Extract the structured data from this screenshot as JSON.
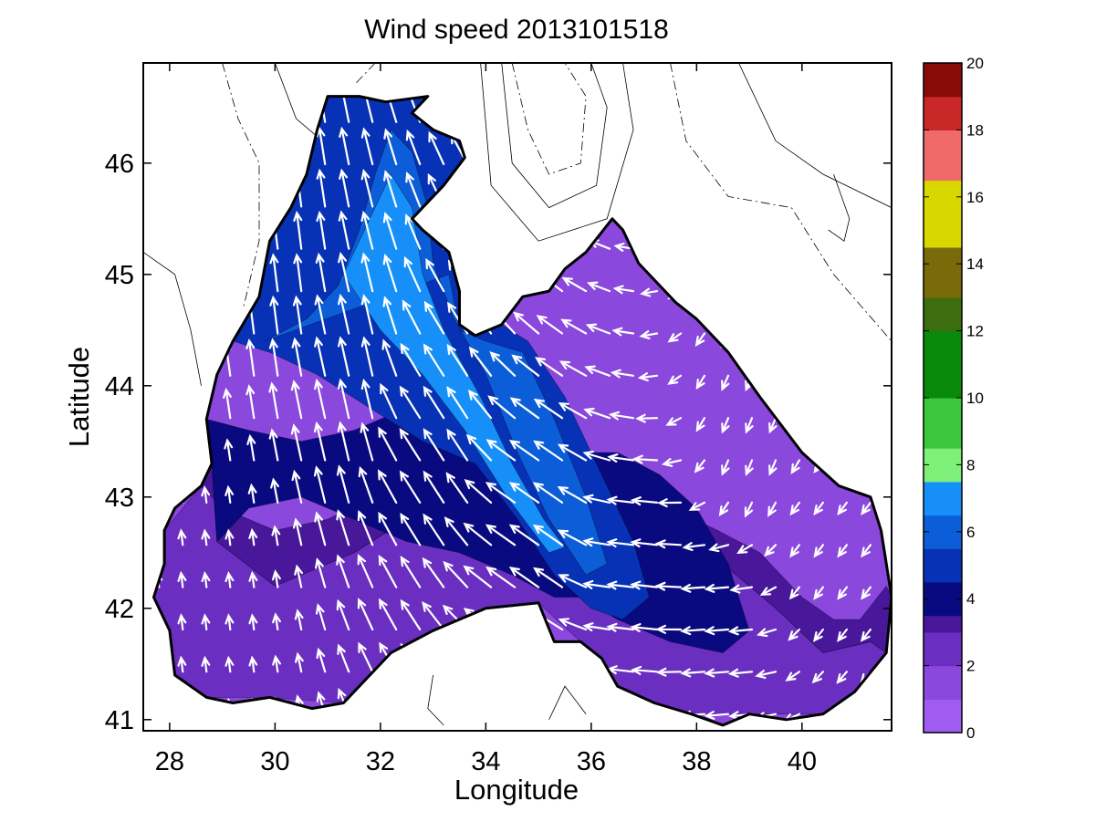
{
  "chart_data": {
    "type": "heatmap",
    "title": "Wind speed 2013101518",
    "xlabel": "Longitude",
    "ylabel": "Latitude",
    "xlim": [
      27.5,
      41.7
    ],
    "ylim": [
      40.9,
      46.9
    ],
    "x_ticks": [
      28,
      30,
      32,
      34,
      36,
      38,
      40
    ],
    "y_ticks": [
      41,
      42,
      43,
      44,
      45,
      46
    ],
    "grid": false,
    "colorbar": {
      "orientation": "vertical",
      "placement": "right",
      "range": [
        0,
        20
      ],
      "ticks": [
        0,
        2,
        4,
        6,
        8,
        10,
        12,
        14,
        16,
        18,
        20
      ],
      "levels": [
        {
          "from": 0,
          "to": 1,
          "color": "#a05cf0"
        },
        {
          "from": 1,
          "to": 2,
          "color": "#8a48dc"
        },
        {
          "from": 2,
          "to": 3,
          "color": "#6a2fc0"
        },
        {
          "from": 3,
          "to": 3.5,
          "color": "#48179a"
        },
        {
          "from": 3.5,
          "to": 4.5,
          "color": "#0a0a80"
        },
        {
          "from": 4.5,
          "to": 5.5,
          "color": "#0732b6"
        },
        {
          "from": 5.5,
          "to": 6.5,
          "color": "#0c5ed8"
        },
        {
          "from": 6.5,
          "to": 7.5,
          "color": "#1690f8"
        },
        {
          "from": 7.5,
          "to": 8.5,
          "color": "#7ef07a"
        },
        {
          "from": 8.5,
          "to": 10,
          "color": "#3cc83c"
        },
        {
          "from": 10,
          "to": 12,
          "color": "#0a8a0a"
        },
        {
          "from": 12,
          "to": 13,
          "color": "#3c6e10"
        },
        {
          "from": 13,
          "to": 14.5,
          "color": "#7a6a0a"
        },
        {
          "from": 14.5,
          "to": 16.5,
          "color": "#d8d800"
        },
        {
          "from": 16.5,
          "to": 18,
          "color": "#f06a6a"
        },
        {
          "from": 18,
          "to": 19,
          "color": "#c82828"
        },
        {
          "from": 19,
          "to": 20,
          "color": "#8a0a0a"
        }
      ]
    },
    "coastline": [
      [
        32.9,
        46.6
      ],
      [
        32.1,
        46.55
      ],
      [
        31.6,
        46.6
      ],
      [
        31.0,
        46.6
      ],
      [
        30.8,
        46.3
      ],
      [
        30.6,
        45.9
      ],
      [
        30.3,
        45.6
      ],
      [
        29.9,
        45.3
      ],
      [
        29.7,
        44.8
      ],
      [
        29.2,
        44.4
      ],
      [
        28.9,
        44.1
      ],
      [
        28.7,
        43.7
      ],
      [
        28.8,
        43.3
      ],
      [
        28.6,
        43.1
      ],
      [
        28.1,
        42.9
      ],
      [
        27.9,
        42.7
      ],
      [
        27.9,
        42.4
      ],
      [
        27.7,
        42.1
      ],
      [
        28.0,
        41.8
      ],
      [
        28.1,
        41.4
      ],
      [
        28.7,
        41.2
      ],
      [
        29.2,
        41.15
      ],
      [
        29.9,
        41.2
      ],
      [
        30.7,
        41.1
      ],
      [
        31.3,
        41.15
      ],
      [
        32.2,
        41.6
      ],
      [
        33.0,
        41.8
      ],
      [
        34.0,
        42.0
      ],
      [
        35.0,
        42.05
      ],
      [
        35.3,
        41.7
      ],
      [
        35.8,
        41.7
      ],
      [
        36.2,
        41.55
      ],
      [
        36.5,
        41.3
      ],
      [
        37.2,
        41.15
      ],
      [
        37.9,
        41.05
      ],
      [
        38.5,
        40.95
      ],
      [
        39.0,
        41.05
      ],
      [
        39.7,
        41.0
      ],
      [
        40.4,
        41.05
      ],
      [
        41.0,
        41.25
      ],
      [
        41.6,
        41.6
      ],
      [
        41.7,
        42.1
      ],
      [
        41.5,
        42.7
      ],
      [
        41.3,
        43.0
      ],
      [
        40.7,
        43.1
      ],
      [
        40.0,
        43.4
      ],
      [
        39.2,
        43.9
      ],
      [
        38.6,
        44.3
      ],
      [
        38.0,
        44.6
      ],
      [
        37.6,
        44.75
      ],
      [
        37.3,
        44.9
      ],
      [
        36.9,
        45.1
      ],
      [
        36.6,
        45.4
      ],
      [
        36.4,
        45.5
      ],
      [
        35.9,
        45.2
      ],
      [
        35.5,
        45.05
      ],
      [
        35.2,
        44.85
      ],
      [
        34.7,
        44.8
      ],
      [
        34.3,
        44.55
      ],
      [
        33.8,
        44.45
      ],
      [
        33.5,
        44.55
      ],
      [
        33.5,
        44.85
      ],
      [
        33.3,
        45.2
      ],
      [
        32.8,
        45.4
      ],
      [
        32.6,
        45.5
      ],
      [
        33.2,
        45.8
      ],
      [
        33.6,
        46.05
      ],
      [
        33.5,
        46.2
      ],
      [
        33.0,
        46.3
      ],
      [
        32.6,
        46.45
      ],
      [
        32.9,
        46.6
      ]
    ],
    "wind_speed_regions": [
      {
        "level": 2.5,
        "color": "#6a2fc0",
        "polygon": [
          [
            27.9,
            42.7
          ],
          [
            28.6,
            43.1
          ],
          [
            28.8,
            43.3
          ],
          [
            28.9,
            42.6
          ],
          [
            30.0,
            42.2
          ],
          [
            31.5,
            42.5
          ],
          [
            32.5,
            42.8
          ],
          [
            34.0,
            42.7
          ],
          [
            35.0,
            42.5
          ],
          [
            36.0,
            42.4
          ],
          [
            37.2,
            42.6
          ],
          [
            38.5,
            42.4
          ],
          [
            39.5,
            42.0
          ],
          [
            40.4,
            41.6
          ],
          [
            41.3,
            41.7
          ],
          [
            41.6,
            41.6
          ],
          [
            41.0,
            41.25
          ],
          [
            40.4,
            41.05
          ],
          [
            39.0,
            41.05
          ],
          [
            37.9,
            41.05
          ],
          [
            37.2,
            41.15
          ],
          [
            36.5,
            41.3
          ],
          [
            35.8,
            41.7
          ],
          [
            35.0,
            42.05
          ],
          [
            33.0,
            41.8
          ],
          [
            31.3,
            41.15
          ],
          [
            29.9,
            41.2
          ],
          [
            28.7,
            41.2
          ],
          [
            28.1,
            41.4
          ],
          [
            28.0,
            41.8
          ],
          [
            27.7,
            42.1
          ],
          [
            27.9,
            42.4
          ],
          [
            27.9,
            42.7
          ]
        ]
      },
      {
        "level": 3.5,
        "color": "#48179a",
        "polygon": [
          [
            28.6,
            43.1
          ],
          [
            29.0,
            42.9
          ],
          [
            30.0,
            42.7
          ],
          [
            31.0,
            42.8
          ],
          [
            32.3,
            43.1
          ],
          [
            33.5,
            43.3
          ],
          [
            34.5,
            43.2
          ],
          [
            35.5,
            43.1
          ],
          [
            36.5,
            43.0
          ],
          [
            37.5,
            42.9
          ],
          [
            38.4,
            42.7
          ],
          [
            39.2,
            42.5
          ],
          [
            40.0,
            42.1
          ],
          [
            40.6,
            41.9
          ],
          [
            41.1,
            41.9
          ],
          [
            41.6,
            42.2
          ],
          [
            41.7,
            42.1
          ],
          [
            41.6,
            41.6
          ],
          [
            41.3,
            41.7
          ],
          [
            40.4,
            41.6
          ],
          [
            39.5,
            42.0
          ],
          [
            38.5,
            42.4
          ],
          [
            37.2,
            42.6
          ],
          [
            36.0,
            42.4
          ],
          [
            35.0,
            42.5
          ],
          [
            34.0,
            42.7
          ],
          [
            32.5,
            42.8
          ],
          [
            31.5,
            42.5
          ],
          [
            30.0,
            42.2
          ],
          [
            28.9,
            42.6
          ],
          [
            28.8,
            43.3
          ]
        ]
      },
      {
        "level": 4,
        "color": "#0a0a80",
        "polygon": [
          [
            28.7,
            43.7
          ],
          [
            29.5,
            43.6
          ],
          [
            30.5,
            43.5
          ],
          [
            31.5,
            43.6
          ],
          [
            32.5,
            43.8
          ],
          [
            33.5,
            43.9
          ],
          [
            34.5,
            43.6
          ],
          [
            35.5,
            43.4
          ],
          [
            36.5,
            43.4
          ],
          [
            37.3,
            43.2
          ],
          [
            38.0,
            42.9
          ],
          [
            38.6,
            42.4
          ],
          [
            39.0,
            41.8
          ],
          [
            38.5,
            41.6
          ],
          [
            37.5,
            41.7
          ],
          [
            36.5,
            41.9
          ],
          [
            35.8,
            42.1
          ],
          [
            35.3,
            42.1
          ],
          [
            34.5,
            42.3
          ],
          [
            33.5,
            42.5
          ],
          [
            32.5,
            42.6
          ],
          [
            31.5,
            42.8
          ],
          [
            30.5,
            43.0
          ],
          [
            29.5,
            42.9
          ],
          [
            28.9,
            42.6
          ],
          [
            28.8,
            43.3
          ]
        ]
      },
      {
        "level": 5,
        "color": "#0732b6",
        "polygon": [
          [
            29.2,
            44.4
          ],
          [
            29.9,
            44.3
          ],
          [
            30.8,
            44.1
          ],
          [
            31.8,
            43.8
          ],
          [
            32.8,
            43.5
          ],
          [
            33.8,
            43.3
          ],
          [
            34.6,
            42.8
          ],
          [
            35.3,
            42.3
          ],
          [
            36.0,
            42.0
          ],
          [
            36.6,
            41.9
          ],
          [
            37.1,
            42.1
          ],
          [
            36.8,
            42.6
          ],
          [
            36.1,
            43.3
          ],
          [
            35.5,
            43.9
          ],
          [
            34.8,
            44.4
          ],
          [
            34.3,
            44.55
          ],
          [
            33.8,
            44.45
          ],
          [
            33.5,
            44.55
          ],
          [
            33.5,
            44.85
          ],
          [
            33.3,
            45.2
          ],
          [
            32.8,
            45.4
          ],
          [
            32.6,
            45.5
          ],
          [
            33.2,
            45.8
          ],
          [
            33.6,
            46.05
          ],
          [
            33.5,
            46.2
          ],
          [
            33.0,
            46.3
          ],
          [
            32.6,
            46.45
          ],
          [
            32.9,
            46.6
          ],
          [
            32.1,
            46.55
          ],
          [
            31.6,
            46.6
          ],
          [
            31.0,
            46.6
          ],
          [
            30.8,
            46.3
          ],
          [
            30.6,
            45.9
          ],
          [
            30.3,
            45.6
          ],
          [
            29.9,
            45.3
          ],
          [
            29.7,
            44.8
          ]
        ]
      },
      {
        "level": 6,
        "color": "#0c5ed8",
        "polygon": [
          [
            29.8,
            44.4
          ],
          [
            30.6,
            44.6
          ],
          [
            31.2,
            44.9
          ],
          [
            31.6,
            45.4
          ],
          [
            31.9,
            45.9
          ],
          [
            32.2,
            46.3
          ],
          [
            32.6,
            46.1
          ],
          [
            32.9,
            45.6
          ],
          [
            33.0,
            45.1
          ],
          [
            33.4,
            44.6
          ],
          [
            34.0,
            44.1
          ],
          [
            34.6,
            43.4
          ],
          [
            35.2,
            42.8
          ],
          [
            35.9,
            42.3
          ],
          [
            36.3,
            42.4
          ],
          [
            35.9,
            43.0
          ],
          [
            35.3,
            43.7
          ],
          [
            34.7,
            44.3
          ],
          [
            34.0,
            44.4
          ],
          [
            33.5,
            44.5
          ],
          [
            33.3,
            45.0
          ]
        ]
      },
      {
        "level": 7,
        "color": "#1690f8",
        "polygon": [
          [
            31.3,
            45.0
          ],
          [
            31.8,
            45.5
          ],
          [
            32.2,
            45.9
          ],
          [
            32.6,
            45.6
          ],
          [
            32.8,
            45.0
          ],
          [
            33.2,
            44.5
          ],
          [
            33.9,
            43.9
          ],
          [
            34.5,
            43.3
          ],
          [
            35.1,
            42.8
          ],
          [
            35.5,
            42.55
          ],
          [
            35.2,
            42.5
          ],
          [
            34.4,
            43.0
          ],
          [
            33.6,
            43.6
          ],
          [
            32.8,
            44.1
          ],
          [
            32.0,
            44.5
          ]
        ]
      }
    ],
    "sample_wind_vectors": [
      {
        "lon": 30.0,
        "lat": 45.0,
        "u": -0.8,
        "v": 6.5
      },
      {
        "lon": 31.5,
        "lat": 44.0,
        "u": -1.5,
        "v": 6.8
      },
      {
        "lon": 33.0,
        "lat": 43.5,
        "u": -3.5,
        "v": 5.5
      },
      {
        "lon": 35.0,
        "lat": 42.7,
        "u": -5.0,
        "v": 3.5
      },
      {
        "lon": 37.0,
        "lat": 42.3,
        "u": -4.5,
        "v": 0.5
      },
      {
        "lon": 38.5,
        "lat": 41.8,
        "u": -4.0,
        "v": -0.3
      },
      {
        "lon": 39.0,
        "lat": 43.5,
        "u": -1.0,
        "v": -2.5
      },
      {
        "lon": 29.0,
        "lat": 42.0,
        "u": -0.3,
        "v": 2.5
      },
      {
        "lon": 40.5,
        "lat": 42.5,
        "u": -1.5,
        "v": -2.0
      }
    ]
  }
}
